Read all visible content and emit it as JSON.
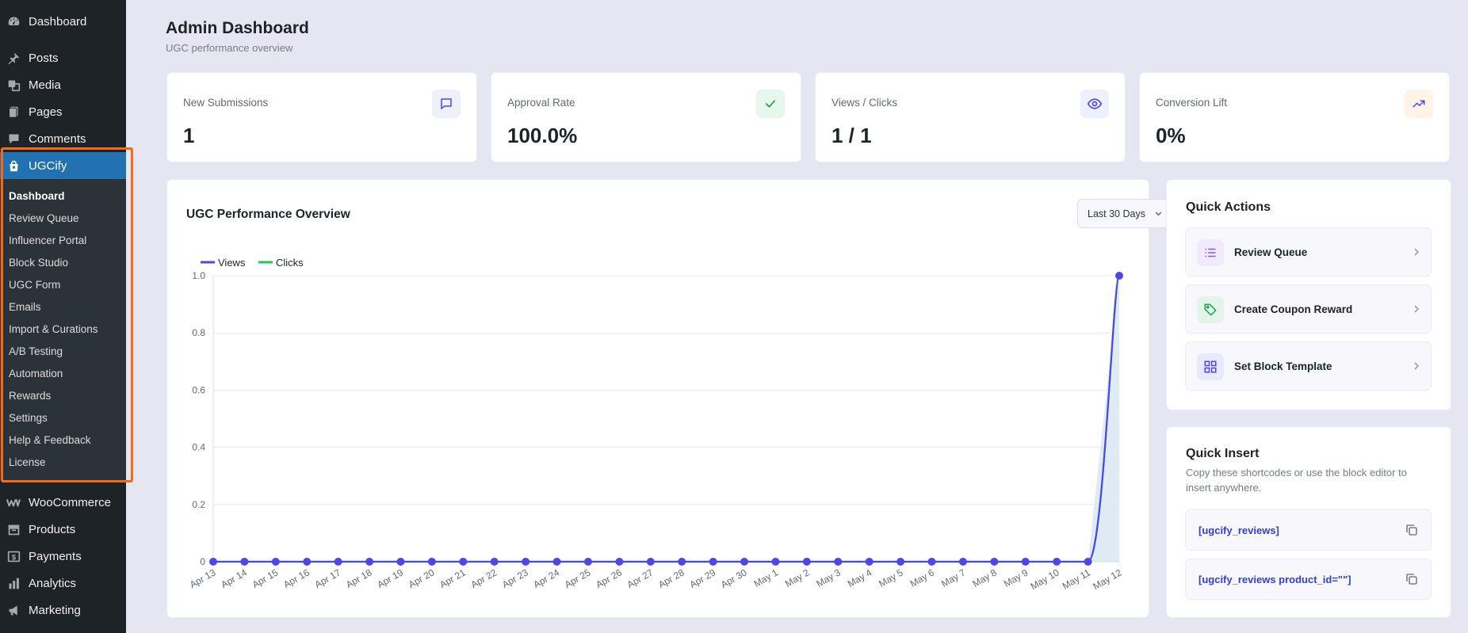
{
  "sidebar": {
    "top_items": [
      {
        "label": "Dashboard",
        "icon": "dashboard-icon"
      },
      {
        "label": "Posts",
        "icon": "pushpin-icon"
      },
      {
        "label": "Media",
        "icon": "media-icon"
      },
      {
        "label": "Pages",
        "icon": "pages-icon"
      },
      {
        "label": "Comments",
        "icon": "comment-icon"
      }
    ],
    "active_item": {
      "label": "UGCify",
      "icon": "bag-icon"
    },
    "submenu": [
      "Dashboard",
      "Review Queue",
      "Influencer Portal",
      "Block Studio",
      "UGC Form",
      "Emails",
      "Import & Curations",
      "A/B Testing",
      "Automation",
      "Rewards",
      "Settings",
      "Help & Feedback",
      "License"
    ],
    "bottom_items": [
      {
        "label": "WooCommerce",
        "icon": "woo-icon"
      },
      {
        "label": "Products",
        "icon": "archive-icon"
      },
      {
        "label": "Payments",
        "icon": "dollar-icon"
      },
      {
        "label": "Analytics",
        "icon": "bar-chart-icon"
      },
      {
        "label": "Marketing",
        "icon": "megaphone-icon"
      }
    ]
  },
  "header": {
    "title": "Admin Dashboard",
    "subtitle": "UGC performance overview"
  },
  "stats": [
    {
      "label": "New Submissions",
      "value": "1",
      "icon": "message-icon",
      "color": "#4f46e5",
      "bg": "#eef0fd"
    },
    {
      "label": "Approval Rate",
      "value": "100.0%",
      "icon": "check-icon",
      "color": "#16a34a",
      "bg": "#e8f7ee"
    },
    {
      "label": "Views / Clicks",
      "value": "1 / 1",
      "icon": "eye-icon",
      "color": "#4f46e5",
      "bg": "#eef0fd"
    },
    {
      "label": "Conversion Lift",
      "value": "0%",
      "icon": "trending-up-icon",
      "color": "#4f46e5",
      "bg": "#fdf3e7"
    }
  ],
  "chart_panel": {
    "title": "UGC Performance Overview",
    "range": "Last 30 Days"
  },
  "chart_data": {
    "type": "line",
    "title": "",
    "categories": [
      "Apr 13",
      "Apr 14",
      "Apr 15",
      "Apr 16",
      "Apr 17",
      "Apr 18",
      "Apr 19",
      "Apr 20",
      "Apr 21",
      "Apr 22",
      "Apr 23",
      "Apr 24",
      "Apr 25",
      "Apr 26",
      "Apr 27",
      "Apr 28",
      "Apr 29",
      "Apr 30",
      "May 1",
      "May 2",
      "May 3",
      "May 4",
      "May 5",
      "May 6",
      "May 7",
      "May 8",
      "May 9",
      "May 10",
      "May 11",
      "May 12"
    ],
    "series": [
      {
        "name": "Views",
        "color": "#4f46e5",
        "values": [
          0,
          0,
          0,
          0,
          0,
          0,
          0,
          0,
          0,
          0,
          0,
          0,
          0,
          0,
          0,
          0,
          0,
          0,
          0,
          0,
          0,
          0,
          0,
          0,
          0,
          0,
          0,
          0,
          0,
          1
        ]
      },
      {
        "name": "Clicks",
        "color": "#22c55e",
        "values": [
          0,
          0,
          0,
          0,
          0,
          0,
          0,
          0,
          0,
          0,
          0,
          0,
          0,
          0,
          0,
          0,
          0,
          0,
          0,
          0,
          0,
          0,
          0,
          0,
          0,
          0,
          0,
          0,
          0,
          1
        ]
      }
    ],
    "ylim": [
      0,
      1
    ],
    "yticks": [
      "1.0",
      "0.8",
      "0.6",
      "0.4",
      "0.2",
      "0"
    ],
    "legend": "top-left",
    "grid": true
  },
  "quick_actions": {
    "title": "Quick Actions",
    "items": [
      {
        "label": "Review Queue",
        "icon": "list-icon",
        "color": "#7c5cf0",
        "bg": "#efebfd"
      },
      {
        "label": "Create Coupon Reward",
        "icon": "tag-icon",
        "color": "#16a34a",
        "bg": "#e3f5ea"
      },
      {
        "label": "Set Block Template",
        "icon": "grid-icon",
        "color": "#4f46e5",
        "bg": "#e8e9fb"
      }
    ]
  },
  "quick_insert": {
    "title": "Quick Insert",
    "description": "Copy these shortcodes or use the block editor to insert anywhere.",
    "shortcodes": [
      "[ugcify_reviews]",
      "[ugcify_reviews product_id=\"\"]"
    ]
  }
}
